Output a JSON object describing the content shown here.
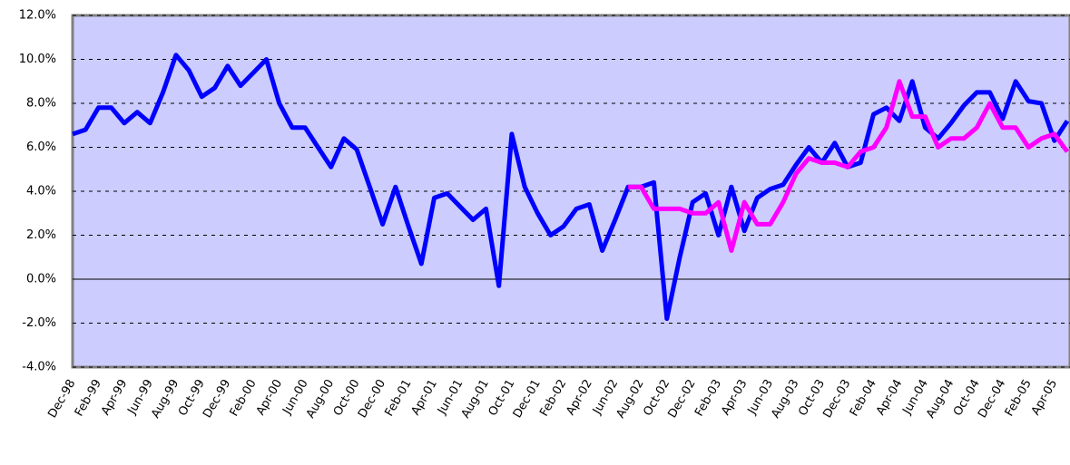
{
  "chart_data": {
    "type": "line",
    "categories": [
      "Dec-98",
      null,
      "Feb-99",
      null,
      "Apr-99",
      null,
      "Jun-99",
      null,
      "Aug-99",
      null,
      "Oct-99",
      null,
      "Dec-99",
      null,
      "Feb-00",
      null,
      "Apr-00",
      null,
      "Jun-00",
      null,
      "Aug-00",
      null,
      "Oct-00",
      null,
      "Dec-00",
      null,
      "Feb-01",
      null,
      "Apr-01",
      null,
      "Jun-01",
      null,
      "Aug-01",
      null,
      "Oct-01",
      null,
      "Dec-01",
      null,
      "Feb-02",
      null,
      "Apr-02",
      null,
      "Jun-02",
      null,
      "Aug-02",
      null,
      "Oct-02",
      null,
      "Dec-02",
      null,
      "Feb-03",
      null,
      "Apr-03",
      null,
      "Jun-03",
      null,
      "Aug-03",
      null,
      "Oct-03",
      null,
      "Dec-03",
      null,
      "Feb-04",
      null,
      "Apr-04",
      null,
      "Jun-04",
      null,
      "Aug-04",
      null,
      "Oct-04",
      null,
      "Dec-04",
      null,
      "Feb-05",
      null,
      "Apr-05",
      null
    ],
    "series": [
      {
        "color": "#0000ff",
        "values": [
          6.6,
          6.8,
          7.8,
          7.8,
          7.1,
          7.6,
          7.1,
          8.5,
          10.2,
          9.5,
          8.3,
          8.7,
          9.7,
          8.8,
          9.4,
          10.0,
          8.0,
          6.9,
          6.9,
          6.0,
          5.1,
          6.4,
          5.9,
          4.2,
          2.5,
          4.2,
          2.4,
          0.7,
          3.7,
          3.9,
          3.3,
          2.7,
          3.2,
          -0.3,
          6.6,
          4.2,
          3.0,
          2.0,
          2.4,
          3.2,
          3.4,
          1.3,
          2.7,
          4.2,
          4.2,
          4.4,
          -1.8,
          1.0,
          3.5,
          3.9,
          2.0,
          4.2,
          2.2,
          3.7,
          4.1,
          4.3,
          5.2,
          6.0,
          5.3,
          6.2,
          5.1,
          5.3,
          7.5,
          7.8,
          7.2,
          9.0,
          6.9,
          6.4,
          7.1,
          7.9,
          8.5,
          8.5,
          7.3,
          9.0,
          8.1,
          8.0,
          6.3,
          7.2
        ]
      },
      {
        "color": "#ff00ff",
        "values": [
          null,
          null,
          null,
          null,
          null,
          null,
          null,
          null,
          null,
          null,
          null,
          null,
          null,
          null,
          null,
          null,
          null,
          null,
          null,
          null,
          null,
          null,
          null,
          null,
          null,
          null,
          null,
          null,
          null,
          null,
          null,
          null,
          null,
          null,
          null,
          null,
          null,
          null,
          null,
          null,
          null,
          null,
          null,
          4.2,
          4.2,
          3.2,
          3.2,
          3.2,
          3.0,
          3.0,
          3.5,
          1.3,
          3.5,
          2.5,
          2.5,
          3.5,
          4.8,
          5.5,
          5.3,
          5.3,
          5.1,
          5.8,
          6.0,
          6.9,
          9.0,
          7.4,
          7.4,
          6.0,
          6.4,
          6.4,
          6.9,
          8.0,
          6.9,
          6.9,
          6.0,
          6.4,
          6.6,
          5.8
        ]
      }
    ],
    "ylim": [
      -4,
      12
    ],
    "yticks": [
      {
        "value": -4,
        "label": "-4.0%"
      },
      {
        "value": -2,
        "label": "-2.0%"
      },
      {
        "value": 0,
        "label": "0.0%"
      },
      {
        "value": 2,
        "label": "2.0%"
      },
      {
        "value": 4,
        "label": "4.0%"
      },
      {
        "value": 6,
        "label": "6.0%"
      },
      {
        "value": 8,
        "label": "8.0%"
      },
      {
        "value": 10,
        "label": "10.0%"
      },
      {
        "value": 12,
        "label": "12.0%"
      }
    ],
    "grid": true
  }
}
